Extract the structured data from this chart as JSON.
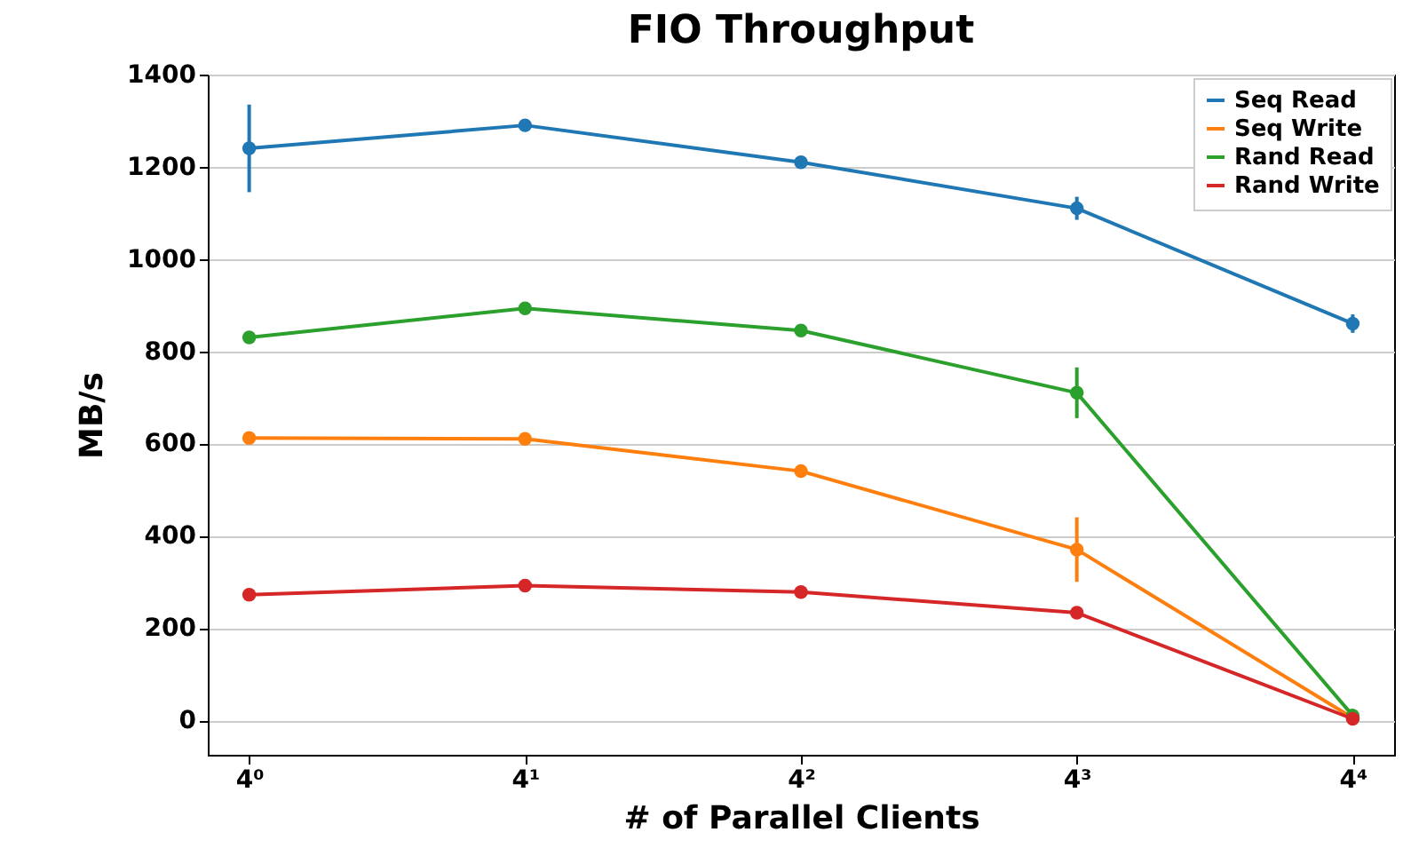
{
  "chart_data": {
    "type": "line",
    "title": "FIO Throughput",
    "xlabel": "# of Parallel Clients",
    "ylabel": "MB/s",
    "categories": [
      "4⁰",
      "4¹",
      "4²",
      "4³",
      "4⁴"
    ],
    "ylim": [
      -75,
      1400
    ],
    "yticks": [
      0,
      200,
      400,
      600,
      800,
      1000,
      1200,
      1400
    ],
    "grid": "y",
    "legend": "top right",
    "marker": "circle",
    "line_style": "solid",
    "series": [
      {
        "name": "Seq Read",
        "color": "#1f77b4",
        "values": [
          1240,
          1290,
          1210,
          1110,
          860
        ],
        "errors": [
          95,
          null,
          null,
          25,
          20
        ]
      },
      {
        "name": "Seq Write",
        "color": "#ff7f0e",
        "values": [
          612,
          610,
          540,
          370,
          5
        ],
        "errors": [
          null,
          null,
          null,
          70,
          null
        ]
      },
      {
        "name": "Rand Read",
        "color": "#2ca02c",
        "values": [
          830,
          893,
          845,
          710,
          10
        ],
        "errors": [
          null,
          null,
          null,
          55,
          null
        ]
      },
      {
        "name": "Rand Write",
        "color": "#d62728",
        "values": [
          272,
          292,
          278,
          233,
          3
        ],
        "errors": [
          null,
          null,
          null,
          null,
          null
        ]
      }
    ]
  }
}
